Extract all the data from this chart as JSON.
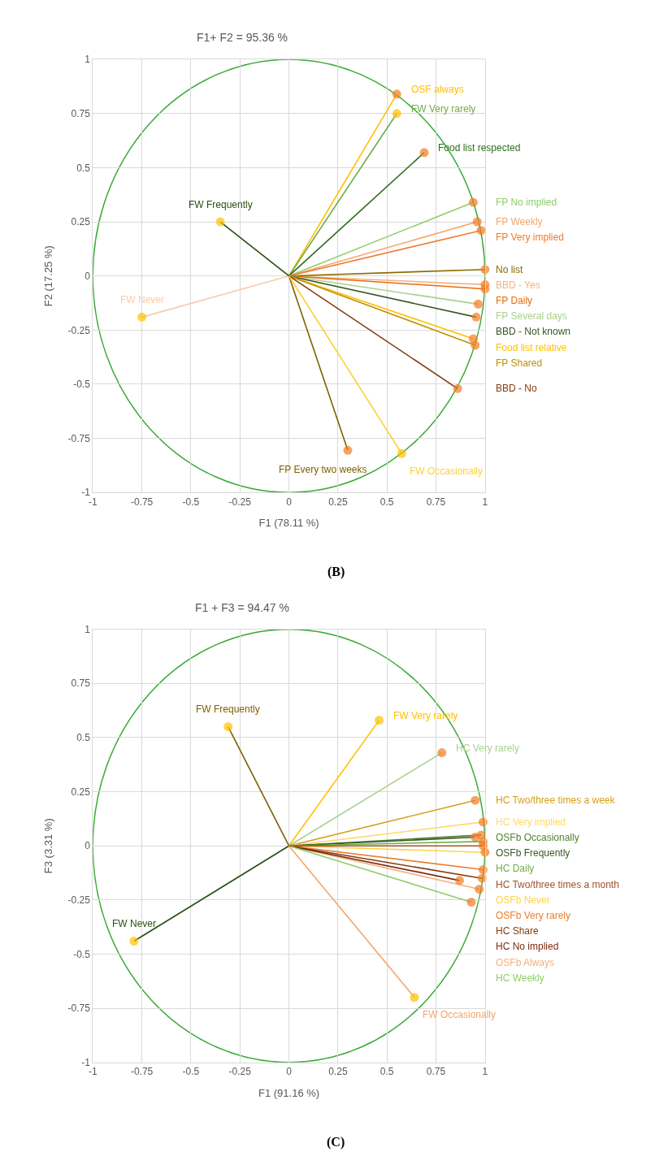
{
  "chart_data": [
    {
      "type": "line",
      "title": "F1+ F2 = 95.36 %",
      "xlabel": "F1 (78.11 %)",
      "ylabel": "F2 (17.25 %)",
      "xlim": [
        -1,
        1
      ],
      "ylim": [
        -1,
        1
      ],
      "xticks": [
        -1,
        -0.75,
        -0.5,
        -0.25,
        0,
        0.25,
        0.5,
        0.75,
        1
      ],
      "yticks": [
        -1,
        -0.75,
        -0.5,
        -0.25,
        0,
        0.25,
        0.5,
        0.75,
        1
      ],
      "grid": true,
      "marker": "circle",
      "annotations": [
        "(B)"
      ],
      "series": [
        {
          "name": "OSF always",
          "color": "#ffc000",
          "x": [
            0,
            0.55
          ],
          "values": [
            0,
            0.84
          ],
          "colors": [
            null,
            "#f47c20"
          ]
        },
        {
          "name": "FW Very rarely",
          "color": "#70ad47",
          "x": [
            0,
            0.55
          ],
          "values": [
            0,
            0.75
          ],
          "colors": [
            null,
            "#ffc000"
          ]
        },
        {
          "name": "Food list respected",
          "color": "#2e6b1f",
          "x": [
            0,
            0.69
          ],
          "values": [
            0,
            0.57
          ],
          "colors": [
            null,
            "#f47c20"
          ]
        },
        {
          "name": "FP No implied",
          "color": "#8fce6a",
          "x": [
            0,
            0.94
          ],
          "values": [
            0,
            0.34
          ],
          "colors": [
            null,
            "#f47c20"
          ]
        },
        {
          "name": "FP Weekly",
          "color": "#f4a56a",
          "x": [
            0,
            0.96
          ],
          "values": [
            0,
            0.25
          ],
          "colors": [
            null,
            "#f47c20"
          ]
        },
        {
          "name": "FP Very implied",
          "color": "#ed7d31",
          "x": [
            0,
            0.98
          ],
          "values": [
            0,
            0.21
          ],
          "colors": [
            null,
            "#f47c20"
          ]
        },
        {
          "name": "BBD - Yes",
          "color": "#f4b183",
          "x": [
            0,
            1.0
          ],
          "values": [
            0,
            -0.04
          ],
          "colors": [
            null,
            "#f47c20"
          ]
        },
        {
          "name": "No list",
          "color": "#8b6d00",
          "x": [
            0,
            1.0
          ],
          "values": [
            0,
            0.03
          ],
          "colors": [
            null,
            "#f47c20"
          ]
        },
        {
          "name": "FP Daily",
          "color": "#e46c0a",
          "x": [
            0,
            1.0
          ],
          "values": [
            0,
            -0.06
          ],
          "colors": [
            null,
            "#f47c20"
          ]
        },
        {
          "name": "FP Several days",
          "color": "#a9d18e",
          "x": [
            0,
            0.965
          ],
          "values": [
            0,
            -0.13
          ],
          "colors": [
            null,
            "#f47c20"
          ]
        },
        {
          "name": "BBD - Not known",
          "color": "#385723",
          "x": [
            0,
            0.955
          ],
          "values": [
            0,
            -0.19
          ],
          "colors": [
            null,
            "#f47c20"
          ]
        },
        {
          "name": "Food list relative",
          "color": "#ffc000",
          "x": [
            0,
            0.94
          ],
          "values": [
            0,
            -0.29
          ],
          "colors": [
            null,
            "#f47c20"
          ]
        },
        {
          "name": "FP Shared",
          "color": "#bf9000",
          "x": [
            0,
            0.95
          ],
          "values": [
            0,
            -0.32
          ],
          "colors": [
            null,
            "#f47c20"
          ]
        },
        {
          "name": "BBD - No",
          "color": "#843c0c",
          "x": [
            0,
            0.86
          ],
          "values": [
            0,
            -0.52
          ],
          "colors": [
            null,
            "#f47c20"
          ]
        },
        {
          "name": "FP Every two weeks",
          "color": "#7f6000",
          "x": [
            0,
            0.3
          ],
          "values": [
            0,
            -0.805
          ],
          "colors": [
            null,
            "#f47c20"
          ]
        },
        {
          "name": "FW Occasionally",
          "color": "#ffd033",
          "x": [
            0,
            0.575
          ],
          "values": [
            0,
            -0.82
          ],
          "colors": [
            null,
            "#ffc000"
          ]
        },
        {
          "name": "FW Never",
          "color": "#f8cbad",
          "x": [
            0,
            -0.75
          ],
          "values": [
            0,
            -0.19
          ],
          "colors": [
            null,
            "#ffc000"
          ]
        },
        {
          "name": "FW Frequently",
          "color": "#274e13",
          "x": [
            0,
            -0.35
          ],
          "values": [
            0,
            0.25
          ],
          "colors": [
            null,
            "#ffc000"
          ]
        }
      ]
    },
    {
      "type": "line",
      "title": "F1 + F3 = 94.47 %",
      "xlabel": "F1 (91.16 %)",
      "ylabel": "F3 (3.31 %)",
      "xlim": [
        -1,
        1
      ],
      "ylim": [
        -1,
        1
      ],
      "xticks": [
        -1,
        -0.75,
        -0.5,
        -0.25,
        0,
        0.25,
        0.5,
        0.75,
        1
      ],
      "yticks": [
        -1,
        -0.75,
        -0.5,
        -0.25,
        0,
        0.25,
        0.5,
        0.75,
        1
      ],
      "grid": true,
      "marker": "circle",
      "annotations": [
        "(C)"
      ],
      "series": [
        {
          "name": "FW Frequently",
          "color": "#7f6000",
          "x": [
            0,
            -0.31
          ],
          "values": [
            0,
            0.55
          ],
          "colors": [
            null,
            "#ffc000"
          ]
        },
        {
          "name": "FW Very rarely",
          "color": "#ffc000",
          "x": [
            0,
            0.46
          ],
          "values": [
            0,
            0.58
          ],
          "colors": [
            null,
            "#ffc000"
          ]
        },
        {
          "name": "HC Very rarely",
          "color": "#a9d18e",
          "x": [
            0,
            0.78
          ],
          "values": [
            0,
            0.43
          ],
          "colors": [
            null,
            "#f47c20"
          ]
        },
        {
          "name": "HC Two/three times a week",
          "color": "#d4a017",
          "x": [
            0,
            0.95
          ],
          "values": [
            0,
            0.21
          ],
          "colors": [
            null,
            "#f47c20"
          ]
        },
        {
          "name": "HC Very implied",
          "color": "#ffd966",
          "x": [
            0,
            0.99
          ],
          "values": [
            0,
            0.11
          ],
          "colors": [
            null,
            "#f47c20"
          ]
        },
        {
          "name": "OSFb Occasionally",
          "color": "#548235",
          "x": [
            0,
            0.98
          ],
          "values": [
            0,
            0.05
          ],
          "colors": [
            null,
            "#f47c20"
          ]
        },
        {
          "name": "OSFb Frequently",
          "color": "#385723",
          "x": [
            0,
            0.95
          ],
          "values": [
            0,
            0.04
          ],
          "colors": [
            null,
            "#f47c20"
          ]
        },
        {
          "name": "HC Daily",
          "color": "#70ad47",
          "x": [
            0,
            0.99
          ],
          "values": [
            0,
            0.02
          ],
          "colors": [
            null,
            "#f47c20"
          ]
        },
        {
          "name": "OSFb Never",
          "color": "#ffd34d",
          "x": [
            0,
            1.0
          ],
          "values": [
            0,
            -0.03
          ],
          "colors": [
            null,
            "#f47c20"
          ]
        },
        {
          "name": "OSFb Very rarely",
          "color": "#ed7d31",
          "x": [
            0,
            0.99
          ],
          "values": [
            0,
            -0.11
          ],
          "colors": [
            null,
            "#f47c20"
          ]
        },
        {
          "name": "HC Share",
          "color": "#843c0c",
          "x": [
            0,
            0.985
          ],
          "values": [
            0,
            -0.15
          ],
          "colors": [
            null,
            "#f47c20"
          ]
        },
        {
          "name": "OSFb Always",
          "color": "#f4b183",
          "x": [
            0,
            0.97
          ],
          "values": [
            0,
            -0.2
          ],
          "colors": [
            null,
            "#f47c20"
          ]
        },
        {
          "name": "HC No implied",
          "color": "#7b2c0c",
          "x": [
            0,
            0.87
          ],
          "values": [
            0,
            -0.16
          ],
          "colors": [
            null,
            "#f47c20"
          ]
        },
        {
          "name": "HC Weekly",
          "color": "#8fce6a",
          "x": [
            0,
            0.93
          ],
          "values": [
            0,
            -0.26
          ],
          "colors": [
            null,
            "#f47c20"
          ]
        },
        {
          "name": "HC Two/three times a month",
          "color": "#a0522d",
          "x": [
            0,
            0.99
          ],
          "values": [
            0,
            0.0
          ],
          "colors": [
            null,
            "#f47c20"
          ]
        },
        {
          "name": "FW Never",
          "color": "#274e13",
          "x": [
            0,
            -0.79
          ],
          "values": [
            0,
            -0.44
          ],
          "colors": [
            null,
            "#ffc000"
          ]
        },
        {
          "name": "FW Occasionally",
          "color": "#f4a56a",
          "x": [
            0,
            0.64
          ],
          "values": [
            0,
            -0.7
          ],
          "colors": [
            null,
            "#ffc000"
          ]
        }
      ]
    }
  ]
}
